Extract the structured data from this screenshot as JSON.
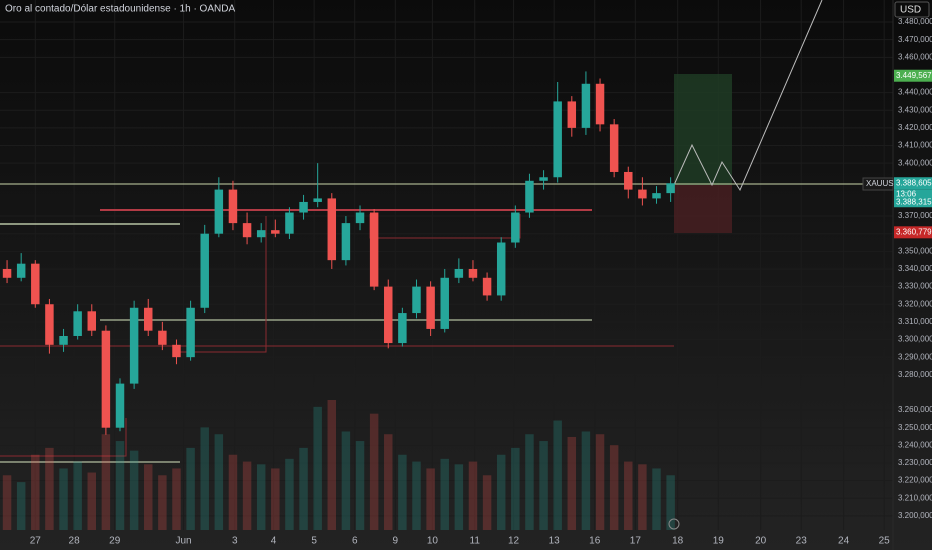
{
  "chart_data": {
    "type": "candlestick",
    "title": "Oro al contado/Dólar estadounidense · 1h · OANDA",
    "currency": "USD",
    "symbol": "XAUUSD",
    "up_color": "#26a69a",
    "down_color": "#ef5350",
    "grid": true,
    "x": [
      4,
      12,
      20,
      28,
      36,
      44,
      52,
      60,
      68,
      76,
      84,
      92,
      100,
      108,
      116,
      124,
      132,
      140,
      148,
      156,
      164,
      172,
      180,
      188,
      196,
      204,
      212,
      220,
      228,
      236,
      244,
      252,
      260,
      268,
      276,
      284,
      292,
      300,
      308,
      316,
      324,
      332,
      340,
      348,
      356,
      364,
      372,
      380
    ],
    "open": [
      3340,
      3335,
      3343,
      3320,
      3297,
      3302,
      3316,
      3305,
      3250,
      3275,
      3318,
      3305,
      3297,
      3290,
      3318,
      3360,
      3385,
      3366,
      3358,
      3362,
      3360,
      3372,
      3378,
      3380,
      3345,
      3366,
      3372,
      3330,
      3298,
      3315,
      3330,
      3306,
      3335,
      3340,
      3335,
      3325,
      3355,
      3372,
      3390,
      3392,
      3435,
      3420,
      3445,
      3422,
      3395,
      3385,
      3380,
      3383
    ],
    "high": [
      3345,
      3349,
      3345,
      3323,
      3306,
      3320,
      3320,
      3308,
      3278,
      3322,
      3323,
      3310,
      3300,
      3322,
      3365,
      3392,
      3390,
      3372,
      3366,
      3368,
      3375,
      3382,
      3400,
      3383,
      3370,
      3376,
      3374,
      3334,
      3318,
      3334,
      3333,
      3340,
      3346,
      3345,
      3338,
      3358,
      3376,
      3394,
      3396,
      3446,
      3438,
      3452,
      3448,
      3425,
      3398,
      3392,
      3387,
      3392
    ],
    "low": [
      3332,
      3333,
      3318,
      3292,
      3293,
      3300,
      3302,
      3246,
      3248,
      3272,
      3302,
      3294,
      3286,
      3288,
      3315,
      3358,
      3362,
      3354,
      3355,
      3358,
      3357,
      3368,
      3375,
      3340,
      3342,
      3362,
      3328,
      3295,
      3296,
      3312,
      3302,
      3304,
      3332,
      3333,
      3322,
      3322,
      3352,
      3369,
      3385,
      3389,
      3415,
      3416,
      3418,
      3392,
      3380,
      3376,
      3377,
      3378
    ],
    "close": [
      3335,
      3343,
      3320,
      3297,
      3302,
      3316,
      3305,
      3250,
      3275,
      3318,
      3305,
      3297,
      3290,
      3318,
      3360,
      3385,
      3366,
      3358,
      3362,
      3360,
      3372,
      3378,
      3380,
      3345,
      3366,
      3372,
      3330,
      3298,
      3315,
      3330,
      3306,
      3335,
      3340,
      3335,
      3325,
      3355,
      3372,
      3390,
      3392,
      3435,
      3420,
      3445,
      3422,
      3395,
      3385,
      3380,
      3383,
      3388.605
    ],
    "volume": [
      40,
      35,
      55,
      60,
      45,
      50,
      42,
      70,
      65,
      58,
      48,
      40,
      45,
      60,
      75,
      70,
      55,
      50,
      48,
      45,
      52,
      60,
      90,
      95,
      72,
      65,
      85,
      70,
      55,
      50,
      45,
      52,
      48,
      50,
      40,
      55,
      60,
      70,
      65,
      80,
      68,
      72,
      70,
      62,
      50,
      48,
      45,
      40
    ],
    "xlim": [
      0,
      506
    ],
    "ylim": [
      3192,
      3492.5
    ],
    "xticks": [
      {
        "value": 20,
        "label": "27"
      },
      {
        "value": 42,
        "label": "28"
      },
      {
        "value": 65,
        "label": "29"
      },
      {
        "value": 104,
        "label": "Jun"
      },
      {
        "value": 133,
        "label": "3"
      },
      {
        "value": 155,
        "label": "4"
      },
      {
        "value": 178,
        "label": "5"
      },
      {
        "value": 201,
        "label": "6"
      },
      {
        "value": 224,
        "label": "9"
      },
      {
        "value": 245,
        "label": "10"
      },
      {
        "value": 269,
        "label": "11"
      },
      {
        "value": 291,
        "label": "12"
      },
      {
        "value": 314,
        "label": "13"
      },
      {
        "value": 337,
        "label": "16"
      },
      {
        "value": 360,
        "label": "17"
      },
      {
        "value": 384,
        "label": "18"
      },
      {
        "value": 407,
        "label": "19"
      },
      {
        "value": 431,
        "label": "20"
      },
      {
        "value": 454,
        "label": "23"
      },
      {
        "value": 478,
        "label": "24"
      },
      {
        "value": 501,
        "label": "25"
      }
    ],
    "yticks": [
      {
        "value": 3480,
        "label": "3.480,000"
      },
      {
        "value": 3470,
        "label": "3.470,000"
      },
      {
        "value": 3460,
        "label": "3.460,000"
      },
      {
        "value": 3440,
        "label": "3.440,000"
      },
      {
        "value": 3430,
        "label": "3.430,000"
      },
      {
        "value": 3420,
        "label": "3.420,000"
      },
      {
        "value": 3410,
        "label": "3.410,000"
      },
      {
        "value": 3400,
        "label": "3.400,000"
      },
      {
        "value": 3370,
        "label": "3.370,000"
      },
      {
        "value": 3360,
        "label": "3.360,000"
      },
      {
        "value": 3350,
        "label": "3.350,000"
      },
      {
        "value": 3340,
        "label": "3.340,000"
      },
      {
        "value": 3330,
        "label": "3.330,000"
      },
      {
        "value": 3320,
        "label": "3.320,000"
      },
      {
        "value": 3310,
        "label": "3.310,000"
      },
      {
        "value": 3300,
        "label": "3.300,000"
      },
      {
        "value": 3290,
        "label": "3.290,000"
      },
      {
        "value": 3280,
        "label": "3.280,000"
      },
      {
        "value": 3260,
        "label": "3.260,000"
      },
      {
        "value": 3250,
        "label": "3.250,000"
      },
      {
        "value": 3240,
        "label": "3.240,000"
      },
      {
        "value": 3230,
        "label": "3.230,000"
      },
      {
        "value": 3220,
        "label": "3.220,000"
      },
      {
        "value": 3210,
        "label": "3.210,000"
      },
      {
        "value": 3200,
        "label": "3.200,000"
      }
    ],
    "price_labels": [
      {
        "value": 3449.567,
        "label": "3.449,567",
        "color": "#4caf50"
      },
      {
        "value": 3388.605,
        "label": "3.388,605",
        "color": "#26a69a"
      },
      {
        "value": 3360.779,
        "label": "3.360,779",
        "color": "#c62828"
      }
    ],
    "countdown": "13:06",
    "bid_label": "3.388,315"
  }
}
